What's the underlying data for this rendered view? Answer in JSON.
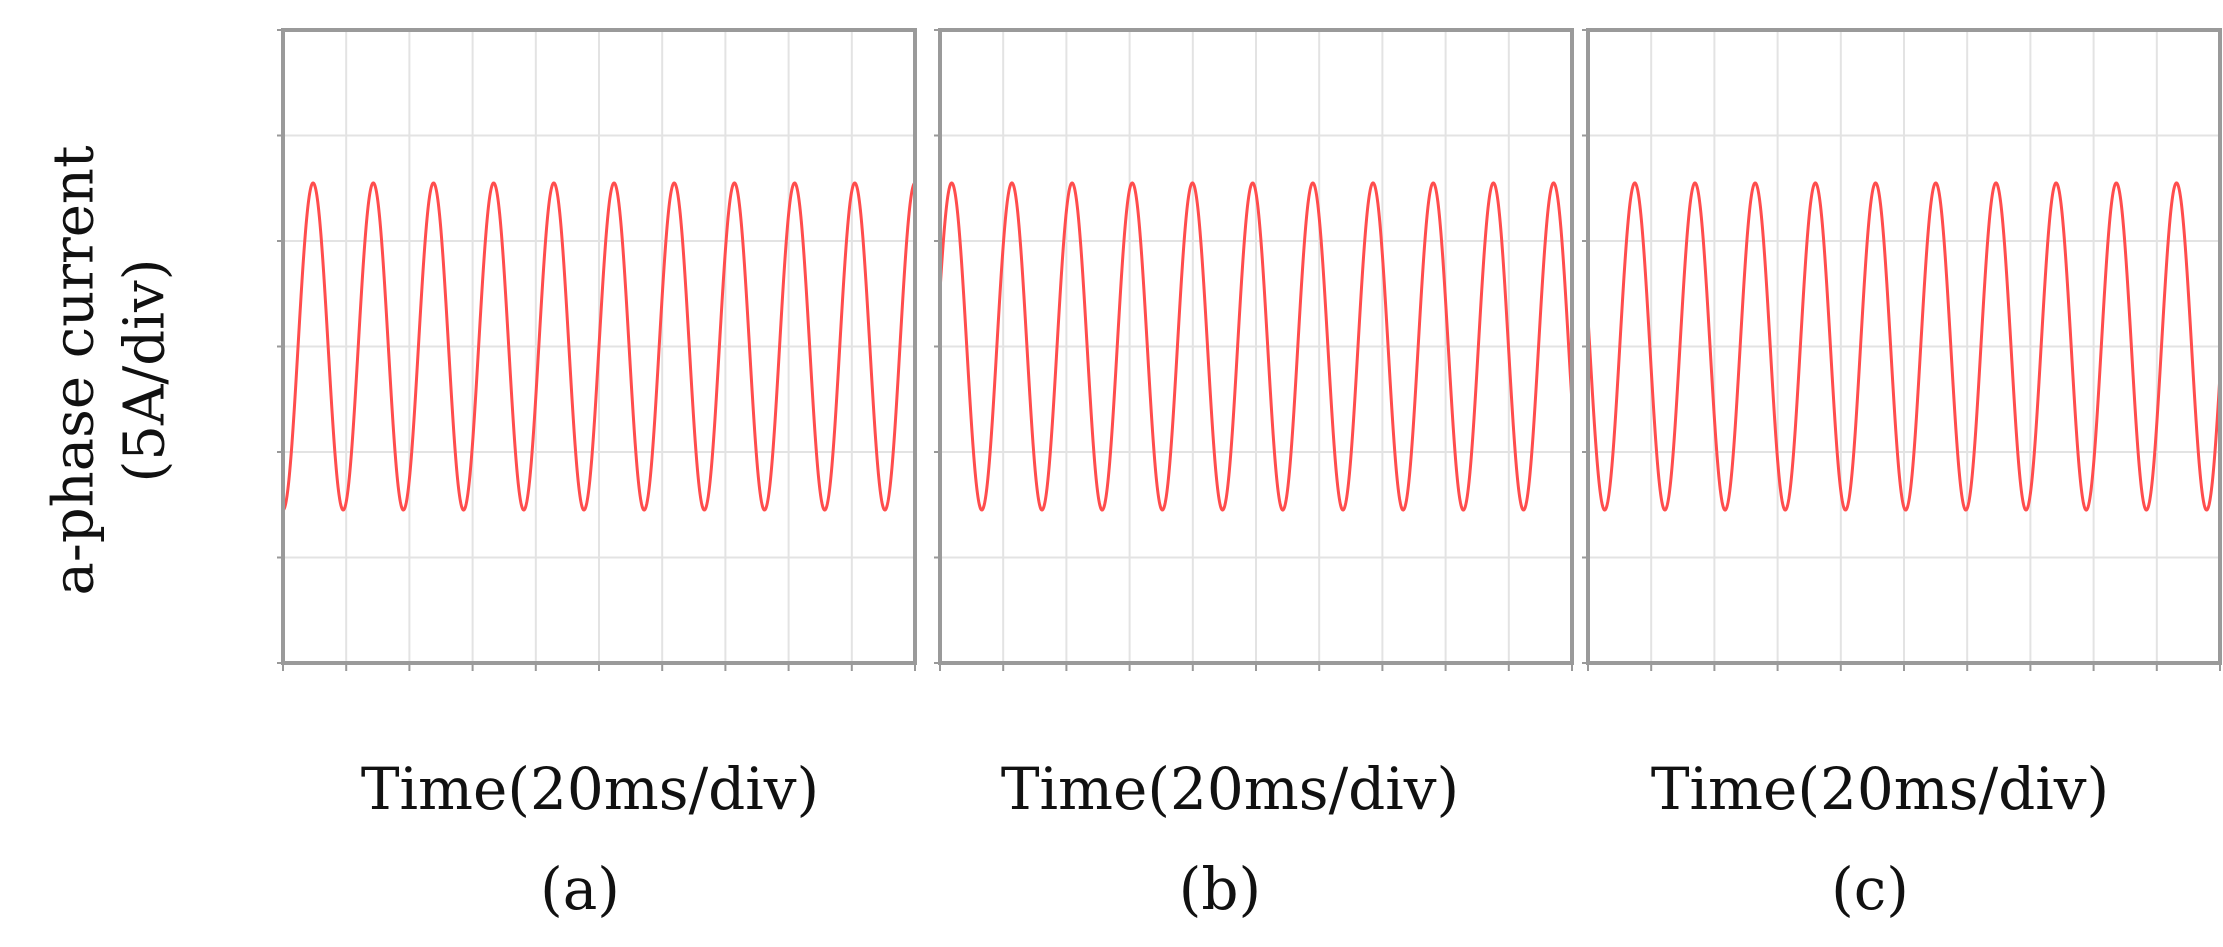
{
  "chart_data": [
    {
      "type": "line",
      "panel_label": "(a)",
      "xlabel": "Time(20ms/div)",
      "ylabel": "a-phase current (5A/div)",
      "x_divisions": 10,
      "y_divisions": 6,
      "grid": true,
      "series": [
        {
          "color": "#ff4d4d",
          "amplitude_div": 1.55,
          "cycles": 10.5,
          "phase_deg": 270
        }
      ]
    },
    {
      "type": "line",
      "panel_label": "(b)",
      "xlabel": "Time(20ms/div)",
      "ylabel": "a-phase current (5A/div)",
      "x_divisions": 10,
      "y_divisions": 6,
      "grid": true,
      "series": [
        {
          "color": "#ff4d4d",
          "amplitude_div": 1.55,
          "cycles": 10.5,
          "phase_deg": 20
        }
      ]
    },
    {
      "type": "line",
      "panel_label": "(c)",
      "xlabel": "Time(20ms/div)",
      "ylabel": "a-phase current (5A/div)",
      "x_divisions": 10,
      "y_divisions": 6,
      "grid": true,
      "series": [
        {
          "color": "#ff4d4d",
          "amplitude_div": 1.55,
          "cycles": 10.5,
          "phase_deg": 170
        }
      ]
    }
  ],
  "labels": {
    "ylabel_line1": "a-phase current",
    "ylabel_line2": "(5A/div)",
    "xlabel_a": "Time(20ms/div)",
    "xlabel_b": "Time(20ms/div)",
    "xlabel_c": "Time(20ms/div)",
    "panel_a": "(a)",
    "panel_b": "(b)",
    "panel_c": "(c)"
  }
}
